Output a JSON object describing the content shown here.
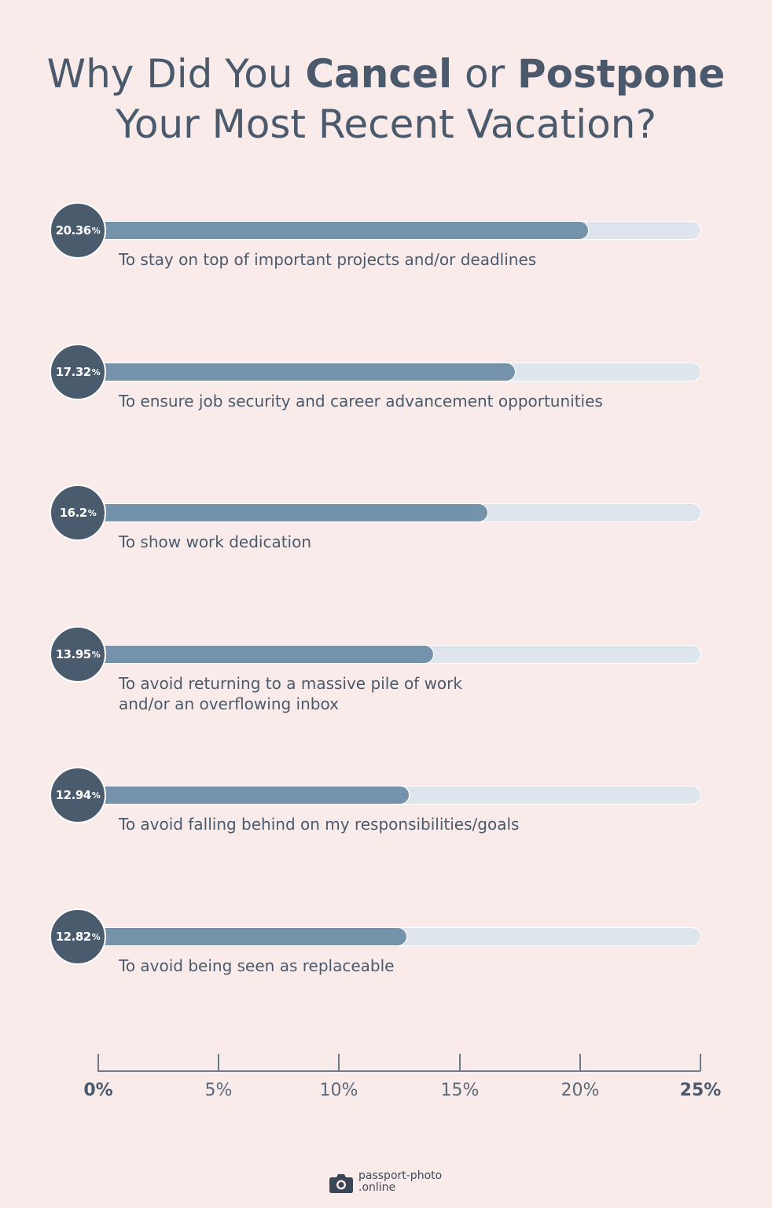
{
  "title": {
    "part1": "Why Did You ",
    "bold1": "Cancel",
    "part2": " or ",
    "bold2": "Postpone",
    "line2": "Your Most Recent Vacation?"
  },
  "chart_data": {
    "type": "bar",
    "orientation": "horizontal",
    "categories": [
      "To stay on top of important projects and/or deadlines",
      "To ensure job security and career advancement opportunities",
      "To show work dedication",
      "To avoid returning to a massive pile of work and/or an overflowing inbox",
      "To avoid falling behind on my responsibilities/goals",
      "To avoid being seen as replaceable"
    ],
    "label_lines": [
      [
        "To stay on top of important projects and/or deadlines"
      ],
      [
        "To ensure job security and career advancement opportunities"
      ],
      [
        "To show work dedication"
      ],
      [
        "To avoid returning to a massive pile of work",
        "and/or an overflowing inbox"
      ],
      [
        "To avoid falling behind on my responsibilities/goals"
      ],
      [
        "To avoid being seen as replaceable"
      ]
    ],
    "values": [
      20.36,
      17.32,
      16.2,
      13.95,
      12.94,
      12.82
    ],
    "value_labels": [
      "20.36",
      "17.32",
      "16.2",
      "13.95",
      "12.94",
      "12.82"
    ],
    "value_suffix": "%",
    "xlim": [
      0,
      25
    ],
    "ticks": [
      0,
      5,
      10,
      15,
      20,
      25
    ],
    "tick_labels": [
      "0%",
      "5%",
      "10%",
      "15%",
      "20%",
      "25%"
    ],
    "grid": false,
    "colors": {
      "fill": "#7592ab",
      "track": "#dfe5ec",
      "badge": "#4b5b6e",
      "text": "#4a5a6c",
      "background": "#f9ebea"
    }
  },
  "brand": {
    "line1": "passport-photo",
    "line2": ".online",
    "icon": "camera-icon"
  }
}
